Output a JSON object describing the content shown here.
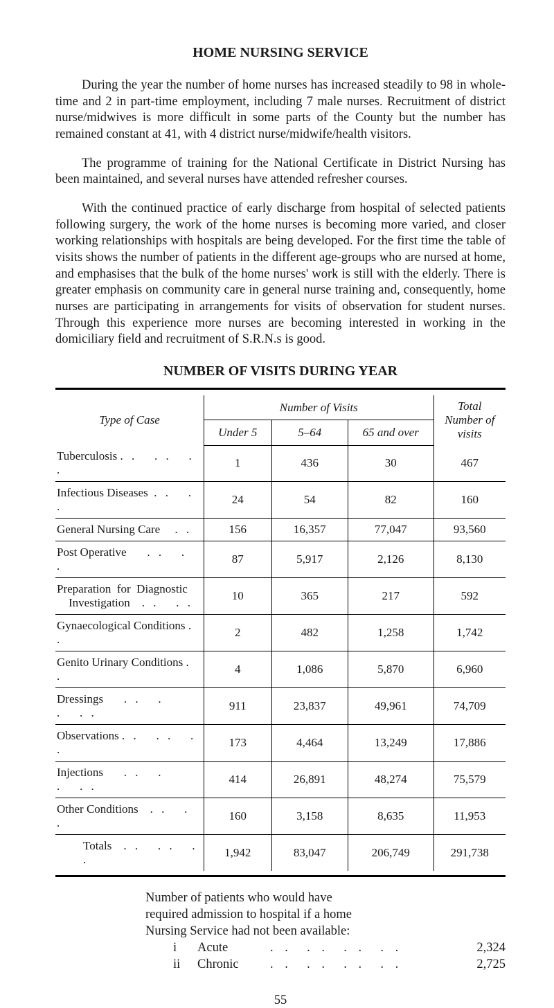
{
  "title": "HOME NURSING SERVICE",
  "paragraphs": {
    "p1": "During the year the number of home nurses has increased steadily to 98 in whole-time and 2 in part-time employment, including 7 male nurses. Recruitment of district nurse/midwives is more difficult in some parts of the County but the number has remained constant at 41, with 4 district nurse/midwife/health visitors.",
    "p2": "The programme of training for the National Certificate in District Nursing has been maintained, and several nurses have attended refresher courses.",
    "p3": "With the continued practice of early discharge from hospital of selected patients following surgery, the work of the home nurses is becoming more varied, and closer working relationships with hospitals are being developed. For the first time the table of visits shows the number of patients in the different age-groups who are nursed at home, and emphasises that the bulk of the home nurses' work is still with the elderly. There is greater emphasis on community care in general nurse training and, consequently, home nurses are participating in arrangements for visits of observation for student nurses. Through this experience more nurses are becoming interested in working in the domiciliary field and recruitment of S.R.N.s is good."
  },
  "subtitle": "NUMBER OF VISITS DURING YEAR",
  "table": {
    "headers": {
      "type_of_case": "Type of Case",
      "number_of_visits": "Number of Visits",
      "under_5": "Under 5",
      "five_64": "5–64",
      "over_65": "65 and over",
      "total": "Total Number of visits"
    },
    "rows": [
      {
        "label": "Tuberculosis",
        "u5": "1",
        "c564": "436",
        "c65": "30",
        "total": "467"
      },
      {
        "label": "Infectious Diseases",
        "u5": "24",
        "c564": "54",
        "c65": "82",
        "total": "160"
      },
      {
        "label": "General Nursing Care",
        "u5": "156",
        "c564": "16,357",
        "c65": "77,047",
        "total": "93,560"
      },
      {
        "label": "Post Operative",
        "u5": "87",
        "c564": "5,917",
        "c65": "2,126",
        "total": "8,130"
      },
      {
        "label": "Preparation for Diagnostic Investigation",
        "u5": "10",
        "c564": "365",
        "c65": "217",
        "total": "592"
      },
      {
        "label": "Gynaecological Conditions",
        "u5": "2",
        "c564": "482",
        "c65": "1,258",
        "total": "1,742"
      },
      {
        "label": "Genito Urinary Conditions",
        "u5": "4",
        "c564": "1,086",
        "c65": "5,870",
        "total": "6,960"
      },
      {
        "label": "Dressings",
        "u5": "911",
        "c564": "23,837",
        "c65": "49,961",
        "total": "74,709"
      },
      {
        "label": "Observations",
        "u5": "173",
        "c564": "4,464",
        "c65": "13,249",
        "total": "17,886"
      },
      {
        "label": "Injections",
        "u5": "414",
        "c564": "26,891",
        "c65": "48,274",
        "total": "75,579"
      },
      {
        "label": "Other Conditions",
        "u5": "160",
        "c564": "3,158",
        "c65": "8,635",
        "total": "11,953"
      },
      {
        "label": "Totals",
        "u5": "1,942",
        "c564": "83,047",
        "c65": "206,749",
        "total": "291,738"
      }
    ]
  },
  "post": {
    "intro1": "Number of patients who would have",
    "intro2": "required admission to hospital if a home",
    "intro3": "Nursing Service had not been available:",
    "items": [
      {
        "num": "i",
        "label": "Acute",
        "value": "2,324"
      },
      {
        "num": "ii",
        "label": "Chronic",
        "value": "2,725"
      }
    ]
  },
  "page_number": "55"
}
